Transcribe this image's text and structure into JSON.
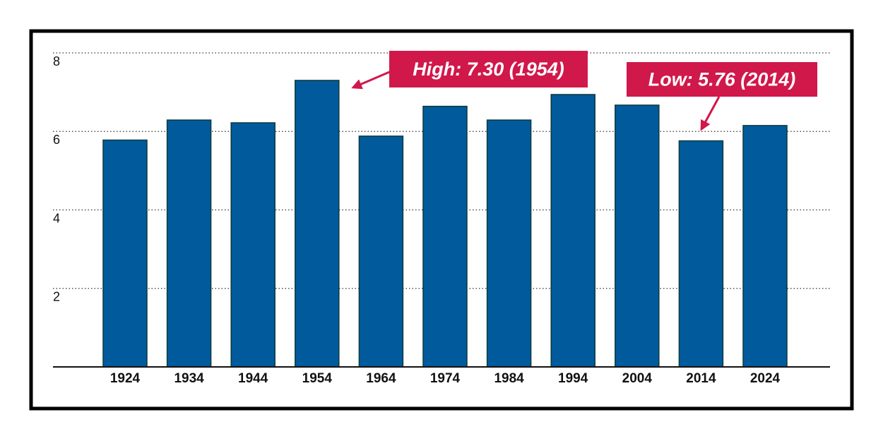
{
  "chart_data": {
    "type": "bar",
    "categories": [
      "1924",
      "1934",
      "1944",
      "1954",
      "1964",
      "1974",
      "1984",
      "1994",
      "2004",
      "2014",
      "2024"
    ],
    "values": [
      5.78,
      6.29,
      6.22,
      7.3,
      5.88,
      6.64,
      6.29,
      6.94,
      6.67,
      5.76,
      6.15
    ],
    "color": "#005a9c",
    "ylim": [
      0,
      8
    ],
    "yticks": [
      0,
      2,
      4,
      6,
      8
    ],
    "grid": true,
    "annotations": [
      {
        "text": "High: 7.30 (1954)",
        "color": "#d0184a"
      },
      {
        "text": "Low: 5.76 (2014)",
        "color": "#d0184a"
      }
    ]
  }
}
